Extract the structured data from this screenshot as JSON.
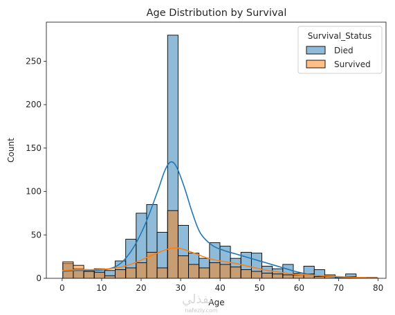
{
  "chart_data": {
    "type": "histogram",
    "title": "Age Distribution by Survival",
    "xlabel": "Age",
    "ylabel": "Count",
    "xlim": [
      -4,
      82
    ],
    "ylim": [
      0,
      295
    ],
    "xticks": [
      0,
      10,
      20,
      30,
      40,
      50,
      60,
      70,
      80
    ],
    "yticks": [
      0,
      50,
      100,
      150,
      200,
      250
    ],
    "bin_edges": [
      0.17,
      2.82,
      5.48,
      8.13,
      10.78,
      13.43,
      16.09,
      18.74,
      21.39,
      24.04,
      26.7,
      29.35,
      32.0,
      34.65,
      37.31,
      39.96,
      42.61,
      45.26,
      47.92,
      50.57,
      53.22,
      55.87,
      58.53,
      61.18,
      63.83,
      66.48,
      69.13,
      71.79,
      74.44,
      77.09,
      79.74
    ],
    "series": [
      {
        "name": "Died",
        "color": "#1f77b4",
        "values": [
          17,
          11,
          10,
          11,
          9,
          20,
          45,
          75,
          85,
          53,
          280,
          61,
          29,
          23,
          41,
          37,
          23,
          30,
          29,
          14,
          11,
          16,
          6,
          14,
          10,
          4,
          1,
          5,
          1,
          1
        ],
        "kde": [
          [
            0,
            8
          ],
          [
            4,
            9
          ],
          [
            8,
            9
          ],
          [
            12,
            11
          ],
          [
            15,
            18
          ],
          [
            18,
            35
          ],
          [
            21,
            62
          ],
          [
            24,
            98
          ],
          [
            26,
            124
          ],
          [
            27.5,
            134
          ],
          [
            29,
            128
          ],
          [
            31,
            104
          ],
          [
            33,
            75
          ],
          [
            35,
            52
          ],
          [
            38,
            38
          ],
          [
            41,
            32
          ],
          [
            44,
            28
          ],
          [
            47,
            24
          ],
          [
            50,
            20
          ],
          [
            53,
            16
          ],
          [
            56,
            12
          ],
          [
            59,
            8
          ],
          [
            62,
            5
          ],
          [
            65,
            3
          ],
          [
            68,
            2
          ],
          [
            72,
            1
          ],
          [
            76,
            0.6
          ],
          [
            80,
            0.3
          ]
        ]
      },
      {
        "name": "Survived",
        "color": "#ff7f0e",
        "values": [
          19,
          15,
          8,
          7,
          3,
          10,
          12,
          18,
          30,
          12,
          78,
          26,
          16,
          12,
          18,
          16,
          13,
          10,
          8,
          6,
          5,
          4,
          4,
          5,
          2,
          2,
          1,
          2,
          0,
          1
        ],
        "kde": [
          [
            0,
            9
          ],
          [
            4,
            10
          ],
          [
            8,
            10
          ],
          [
            12,
            11
          ],
          [
            15,
            13
          ],
          [
            18,
            17
          ],
          [
            21,
            23
          ],
          [
            24,
            29
          ],
          [
            27,
            34
          ],
          [
            29,
            35
          ],
          [
            31,
            33
          ],
          [
            34,
            28
          ],
          [
            37,
            23
          ],
          [
            40,
            20
          ],
          [
            43,
            18
          ],
          [
            46,
            15
          ],
          [
            49,
            12
          ],
          [
            52,
            9
          ],
          [
            55,
            7
          ],
          [
            58,
            5
          ],
          [
            62,
            4
          ],
          [
            66,
            3
          ],
          [
            70,
            2
          ],
          [
            75,
            1
          ],
          [
            80,
            0.5
          ]
        ]
      }
    ],
    "legend": {
      "title": "Survival_Status",
      "entries": [
        "Died",
        "Survived"
      ],
      "position": "top-right"
    },
    "grid": false
  },
  "watermark": {
    "main": "نفذلي",
    "sub": "nafezly.com"
  }
}
